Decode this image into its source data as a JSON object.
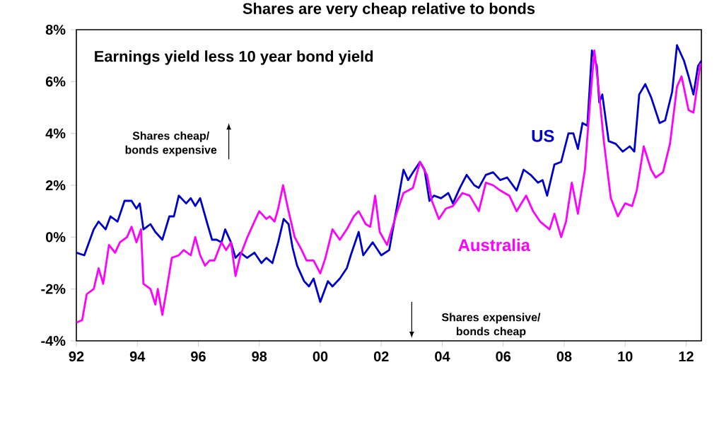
{
  "chart_data": {
    "type": "line",
    "title": "Shares are very cheap relative to bonds",
    "subtitle": "Earnings yield less 10 year bond yield",
    "annotations": [
      "Shares cheap/ bonds expensive",
      "Shares expensive/ bonds cheap"
    ],
    "xlim": [
      1992,
      2012.5
    ],
    "xticks": [
      {
        "value": 1992,
        "label": "92"
      },
      {
        "value": 1994,
        "label": "94"
      },
      {
        "value": 1996,
        "label": "96"
      },
      {
        "value": 1998,
        "label": "98"
      },
      {
        "value": 2000,
        "label": "00"
      },
      {
        "value": 2002,
        "label": "02"
      },
      {
        "value": 2004,
        "label": "04"
      },
      {
        "value": 2006,
        "label": "06"
      },
      {
        "value": 2008,
        "label": "08"
      },
      {
        "value": 2010,
        "label": "10"
      },
      {
        "value": 2012,
        "label": "12"
      }
    ],
    "ylim": [
      -4,
      8
    ],
    "yticks": [
      {
        "value": -4,
        "label": "-4%"
      },
      {
        "value": -2,
        "label": "-2%"
      },
      {
        "value": 0,
        "label": "0%"
      },
      {
        "value": 2,
        "label": "2%"
      },
      {
        "value": 4,
        "label": "4%"
      },
      {
        "value": 6,
        "label": "6%"
      },
      {
        "value": 8,
        "label": "8%"
      }
    ],
    "grid": false,
    "legend": false,
    "marker": "none",
    "line_style": "solid",
    "series": [
      {
        "name": "US",
        "color": "#0000cc",
        "x": [
          1992.0,
          1992.26,
          1992.57,
          1992.73,
          1992.96,
          1993.12,
          1993.35,
          1993.58,
          1993.81,
          1993.97,
          1994.08,
          1994.2,
          1994.43,
          1994.59,
          1994.82,
          1995.05,
          1995.2,
          1995.36,
          1995.6,
          1995.75,
          1995.9,
          1996.06,
          1996.3,
          1996.45,
          1996.6,
          1996.76,
          1996.88,
          1997.07,
          1997.22,
          1997.38,
          1997.6,
          1997.84,
          1998.07,
          1998.23,
          1998.43,
          1998.62,
          1998.8,
          1998.96,
          1999.09,
          1999.24,
          1999.47,
          1999.63,
          1999.78,
          2000.0,
          2000.25,
          2000.4,
          2000.64,
          2000.87,
          2001.0,
          2001.26,
          2001.41,
          2001.72,
          2002.0,
          2002.26,
          2002.73,
          2002.88,
          2003.04,
          2003.27,
          2003.42,
          2003.58,
          2003.73,
          2003.96,
          2004.2,
          2004.35,
          2004.58,
          2004.8,
          2005.05,
          2005.2,
          2005.43,
          2005.67,
          2005.9,
          2006.13,
          2006.44,
          2006.67,
          2006.9,
          2007.14,
          2007.29,
          2007.44,
          2007.68,
          2007.9,
          2008.14,
          2008.3,
          2008.45,
          2008.6,
          2008.76,
          2008.91,
          2009.07,
          2009.15,
          2009.25,
          2009.46,
          2009.69,
          2009.92,
          2010.15,
          2010.3,
          2010.46,
          2010.66,
          2010.85,
          2011.13,
          2011.31,
          2011.54,
          2011.7,
          2011.93,
          2012.08,
          2012.24,
          2012.39,
          2012.5
        ],
        "values": [
          -0.6,
          -0.7,
          0.3,
          0.6,
          0.3,
          0.8,
          0.6,
          1.4,
          1.4,
          1.1,
          1.3,
          0.3,
          0.5,
          0.2,
          -0.1,
          0.8,
          0.8,
          1.6,
          1.3,
          1.5,
          1.2,
          1.5,
          0.5,
          -0.1,
          -0.1,
          -0.2,
          0.3,
          -0.2,
          -0.8,
          -0.6,
          -0.8,
          -0.6,
          -1.0,
          -0.8,
          -1.0,
          -0.2,
          0.7,
          0.5,
          -0.4,
          -1.1,
          -1.7,
          -1.9,
          -1.6,
          -2.5,
          -1.7,
          -1.9,
          -1.6,
          -1.2,
          -0.7,
          0.2,
          -0.7,
          -0.2,
          -0.7,
          -0.5,
          2.6,
          2.2,
          2.5,
          2.9,
          2.6,
          1.4,
          1.6,
          1.5,
          1.7,
          1.3,
          1.9,
          2.4,
          2.0,
          1.9,
          2.4,
          2.5,
          2.2,
          2.3,
          1.8,
          2.6,
          2.4,
          2.1,
          2.2,
          1.6,
          2.8,
          2.9,
          4.0,
          4.0,
          3.4,
          4.4,
          4.3,
          7.2,
          6.6,
          5.2,
          5.5,
          3.7,
          3.6,
          3.3,
          3.5,
          3.3,
          5.5,
          5.9,
          5.4,
          4.4,
          4.5,
          5.6,
          7.4,
          6.8,
          6.2,
          5.5,
          6.6,
          6.8
        ]
      },
      {
        "name": "Australia",
        "color": "#ff00ff",
        "x": [
          1992.0,
          1992.19,
          1992.34,
          1992.57,
          1992.73,
          1992.88,
          1993.07,
          1993.27,
          1993.43,
          1993.66,
          1993.81,
          1993.97,
          1994.12,
          1994.2,
          1994.43,
          1994.59,
          1994.67,
          1994.82,
          1994.98,
          1995.13,
          1995.36,
          1995.52,
          1995.75,
          1995.9,
          1996.06,
          1996.22,
          1996.37,
          1996.53,
          1996.76,
          1996.91,
          1997.07,
          1997.22,
          1997.38,
          1997.61,
          1997.84,
          1998.0,
          1998.23,
          1998.34,
          1998.5,
          1998.62,
          1998.78,
          1998.96,
          1999.16,
          1999.39,
          1999.55,
          1999.78,
          2000.0,
          2000.17,
          2000.4,
          2000.64,
          2000.87,
          2001.1,
          2001.26,
          2001.49,
          2001.64,
          2001.8,
          2001.95,
          2002.19,
          2002.5,
          2002.73,
          2003.04,
          2003.27,
          2003.5,
          2003.66,
          2003.89,
          2004.12,
          2004.35,
          2004.66,
          2004.9,
          2005.2,
          2005.43,
          2005.67,
          2005.9,
          2006.2,
          2006.44,
          2006.75,
          2006.98,
          2007.21,
          2007.52,
          2007.68,
          2007.9,
          2008.06,
          2008.25,
          2008.45,
          2008.68,
          2008.84,
          2008.99,
          2009.15,
          2009.3,
          2009.53,
          2009.76,
          2010.0,
          2010.23,
          2010.38,
          2010.61,
          2010.85,
          2011.0,
          2011.24,
          2011.47,
          2011.7,
          2011.85,
          2012.08,
          2012.24,
          2012.47
        ],
        "values": [
          -3.3,
          -3.2,
          -2.2,
          -2.0,
          -1.2,
          -1.8,
          -0.3,
          -0.6,
          -0.2,
          0.0,
          0.4,
          -0.2,
          0.3,
          -1.8,
          -2.0,
          -2.6,
          -2.0,
          -3.0,
          -1.9,
          -0.8,
          -0.7,
          -0.5,
          -0.7,
          0.0,
          -0.7,
          -1.1,
          -0.9,
          -0.9,
          -0.2,
          -0.5,
          -0.2,
          -1.5,
          -0.7,
          0.0,
          0.6,
          1.0,
          0.7,
          0.8,
          0.6,
          1.1,
          2.0,
          1.0,
          0.0,
          -0.5,
          -0.9,
          -0.9,
          -1.4,
          -0.8,
          0.3,
          -0.1,
          0.3,
          0.8,
          1.0,
          0.5,
          0.4,
          1.6,
          0.2,
          -0.3,
          0.9,
          1.7,
          1.9,
          2.9,
          2.4,
          1.4,
          0.7,
          1.1,
          1.2,
          1.7,
          1.6,
          1.0,
          2.1,
          2.0,
          1.8,
          1.6,
          1.0,
          1.6,
          1.0,
          0.6,
          0.3,
          0.9,
          0.0,
          0.6,
          2.1,
          0.9,
          2.6,
          5.1,
          7.2,
          5.5,
          3.7,
          1.5,
          0.8,
          1.3,
          1.2,
          1.8,
          3.5,
          2.6,
          2.3,
          2.5,
          3.6,
          5.8,
          6.2,
          4.9,
          4.8,
          6.7
        ]
      }
    ]
  }
}
